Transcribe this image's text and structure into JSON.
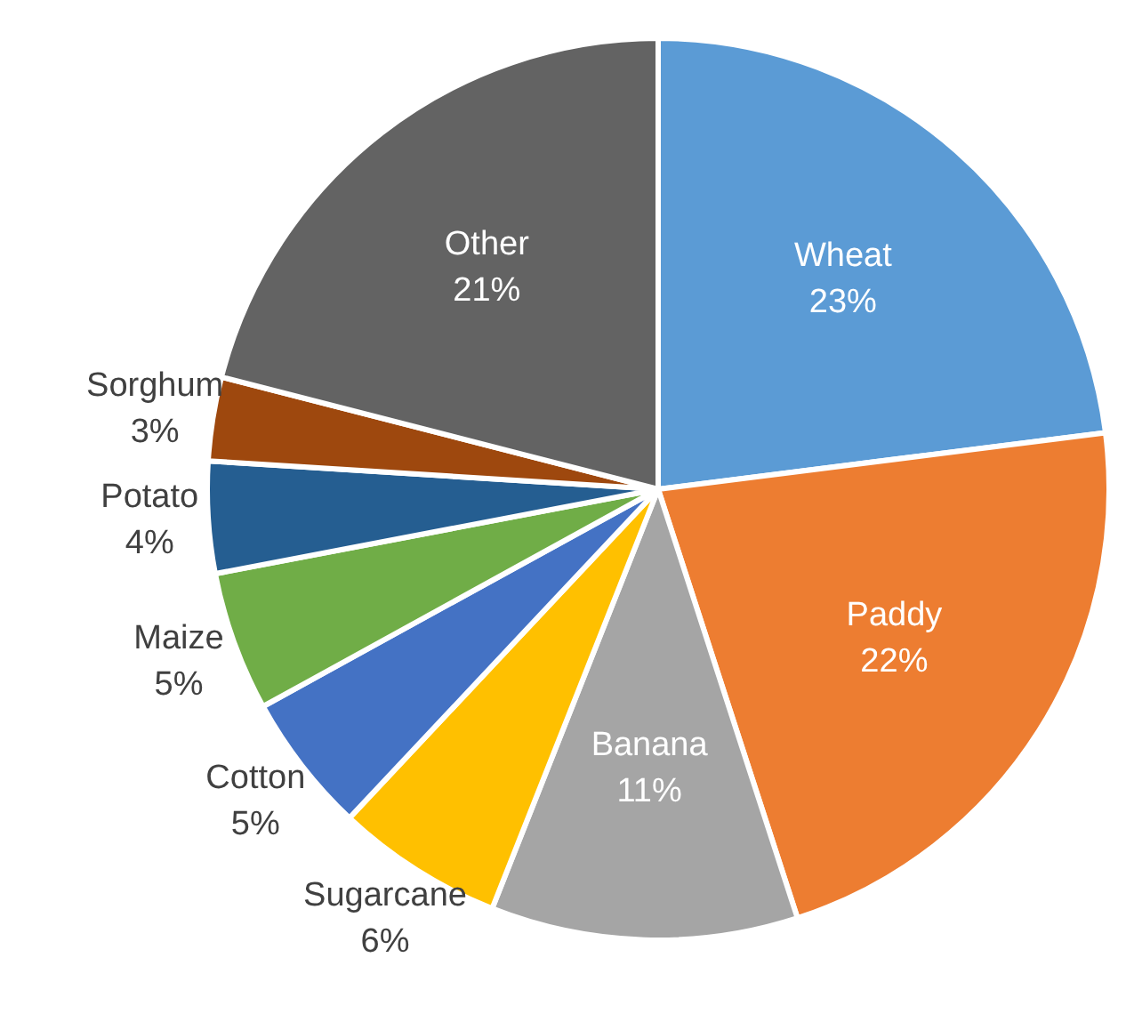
{
  "chart_data": {
    "type": "pie",
    "categories": [
      "Wheat",
      "Paddy",
      "Banana",
      "Sugarcane",
      "Cotton",
      "Maize",
      "Potato",
      "Sorghum",
      "Other"
    ],
    "values": [
      23,
      22,
      11,
      6,
      5,
      5,
      4,
      3,
      21
    ],
    "colors": [
      "#5b9bd5",
      "#ed7d31",
      "#a5a5a5",
      "#ffc000",
      "#4472c4",
      "#70ad47",
      "#255e91",
      "#9e480e",
      "#636363"
    ],
    "value_labels": [
      "23%",
      "22%",
      "11%",
      "6%",
      "5%",
      "5%",
      "4%",
      "3%",
      "21%"
    ],
    "legend": false
  }
}
